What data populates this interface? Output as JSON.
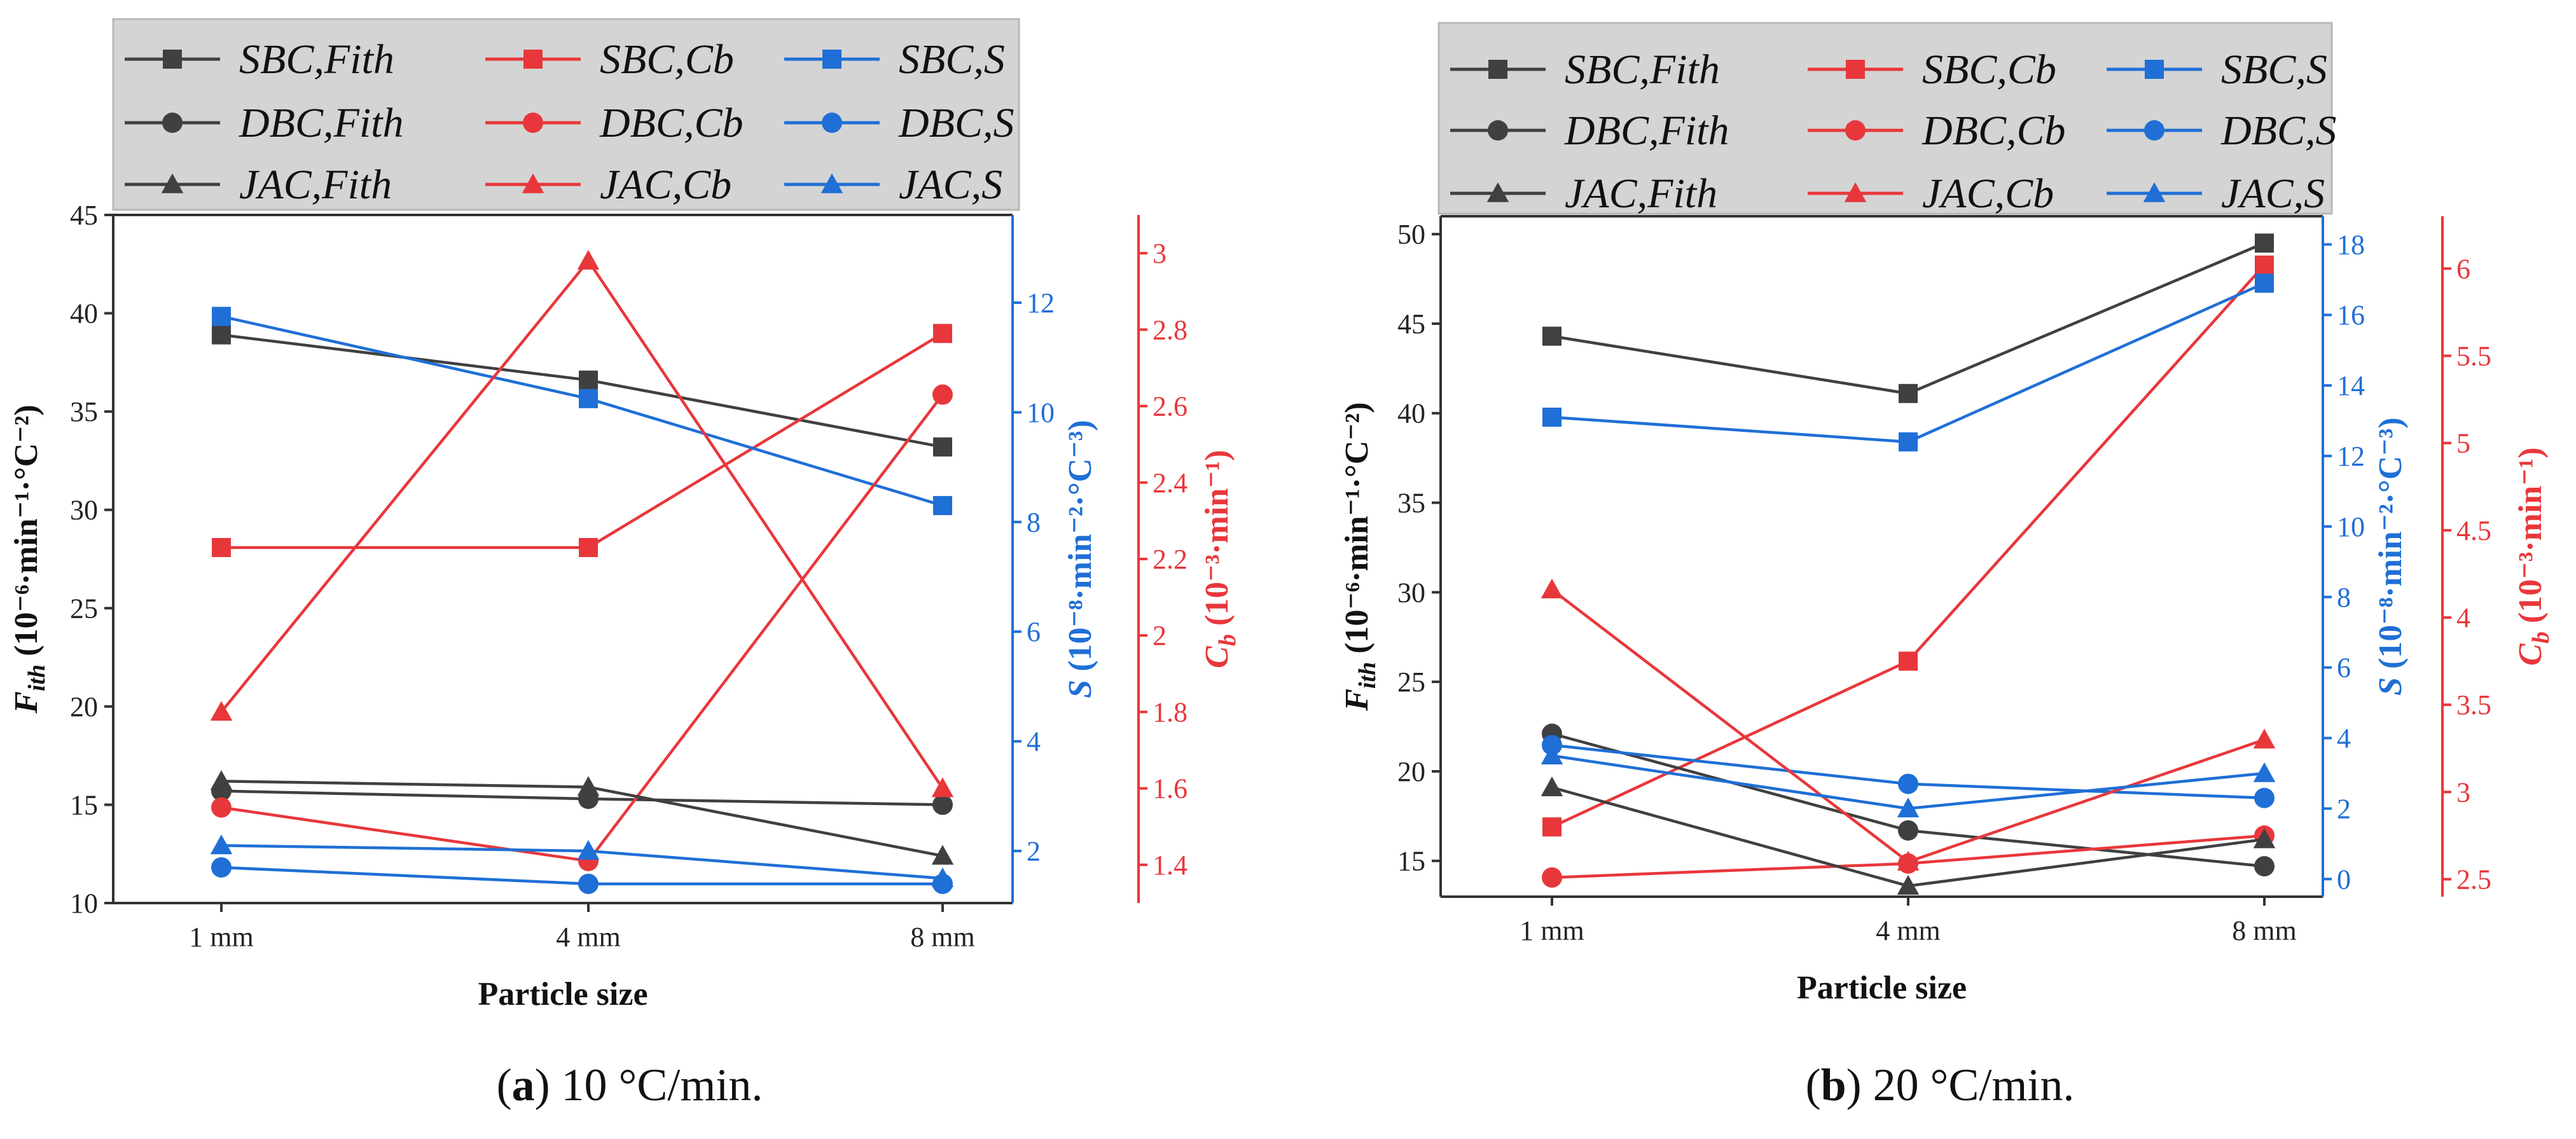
{
  "colors": {
    "black": "#404040",
    "red": "#e8373b",
    "blue": "#1f6fd6",
    "axis_black": "#333333"
  },
  "chart_data": [
    {
      "type": "line",
      "caption_label": "(a)",
      "caption_text": " 10 °C/min.",
      "categories": [
        "1 mm",
        "4 mm",
        "8 mm"
      ],
      "xlabel": "Particle size",
      "axes": {
        "left": {
          "label_main": "F",
          "label_sub": "ith",
          "label_units": " (10⁻⁶·min⁻¹·°C⁻²)",
          "ylim": [
            10,
            45
          ],
          "ticks": [
            10,
            15,
            20,
            25,
            30,
            35,
            40,
            45
          ]
        },
        "blue": {
          "label_main": "S",
          "label_units": " (10⁻⁸·min⁻²·°C⁻³)",
          "ylim": [
            1.05,
            13.6
          ],
          "ticks": [
            2,
            4,
            6,
            8,
            10,
            12
          ]
        },
        "red": {
          "label_main": "C",
          "label_sub": "b",
          "label_units": " (10⁻³·min⁻¹)",
          "ylim": [
            1.3,
            3.1
          ],
          "ticks": [
            1.4,
            1.6,
            1.8,
            2.0,
            2.2,
            2.4,
            2.6,
            2.8,
            3.0
          ]
        }
      },
      "series": [
        {
          "name": "SBC,Fith",
          "axis": "left",
          "color": "black",
          "marker": "square",
          "values": [
            38.9,
            36.6,
            33.2
          ]
        },
        {
          "name": "SBC,Cb",
          "axis": "red",
          "color": "red",
          "marker": "square",
          "values": [
            2.23,
            2.23,
            2.79
          ]
        },
        {
          "name": "SBC,S",
          "axis": "blue",
          "color": "blue",
          "marker": "square",
          "values": [
            11.75,
            10.25,
            8.3
          ]
        },
        {
          "name": "DBC,Fith",
          "axis": "left",
          "color": "black",
          "marker": "circle",
          "values": [
            15.7,
            15.3,
            15.0
          ]
        },
        {
          "name": "DBC,Cb",
          "axis": "red",
          "color": "red",
          "marker": "circle",
          "values": [
            1.55,
            1.41,
            2.63
          ]
        },
        {
          "name": "DBC,S",
          "axis": "blue",
          "color": "blue",
          "marker": "circle",
          "values": [
            1.7,
            1.4,
            1.4
          ]
        },
        {
          "name": "JAC,Fith",
          "axis": "left",
          "color": "black",
          "marker": "triangle",
          "values": [
            16.2,
            15.9,
            12.4
          ]
        },
        {
          "name": "JAC,Cb",
          "axis": "red",
          "color": "red",
          "marker": "triangle",
          "values": [
            1.8,
            2.98,
            1.6
          ]
        },
        {
          "name": "JAC,S",
          "axis": "blue",
          "color": "blue",
          "marker": "triangle",
          "values": [
            2.1,
            2.0,
            1.5
          ]
        }
      ]
    },
    {
      "type": "line",
      "caption_label": "(b)",
      "caption_text": " 20 °C/min.",
      "categories": [
        "1 mm",
        "4 mm",
        "8 mm"
      ],
      "xlabel": "Particle size",
      "axes": {
        "left": {
          "label_main": "F",
          "label_sub": "ith",
          "label_units": " (10⁻⁶·min⁻¹·°C⁻²)",
          "ylim": [
            13,
            51
          ],
          "ticks": [
            15,
            20,
            25,
            30,
            35,
            40,
            45,
            50
          ]
        },
        "blue": {
          "label_main": "S",
          "label_units": " (10⁻⁸·min⁻²·°C⁻³)",
          "ylim": [
            -0.5,
            18.8
          ],
          "ticks": [
            0,
            2,
            4,
            6,
            8,
            10,
            12,
            14,
            16,
            18
          ]
        },
        "red": {
          "label_main": "C",
          "label_sub": "b",
          "label_units": " (10⁻³·min⁻¹)",
          "ylim": [
            2.4,
            6.3
          ],
          "ticks": [
            2.5,
            3.0,
            3.5,
            4.0,
            4.5,
            5.0,
            5.5,
            6.0
          ]
        }
      },
      "series": [
        {
          "name": "SBC,Fith",
          "axis": "left",
          "color": "black",
          "marker": "square",
          "values": [
            44.3,
            41.1,
            49.5
          ]
        },
        {
          "name": "SBC,Cb",
          "axis": "red",
          "color": "red",
          "marker": "square",
          "values": [
            2.8,
            3.75,
            6.02
          ]
        },
        {
          "name": "SBC,S",
          "axis": "blue",
          "color": "blue",
          "marker": "square",
          "values": [
            13.1,
            12.4,
            16.9
          ]
        },
        {
          "name": "DBC,Fith",
          "axis": "left",
          "color": "black",
          "marker": "circle",
          "values": [
            22.1,
            16.7,
            14.7
          ]
        },
        {
          "name": "DBC,Cb",
          "axis": "red",
          "color": "red",
          "marker": "circle",
          "values": [
            2.51,
            2.59,
            2.75
          ]
        },
        {
          "name": "DBC,S",
          "axis": "blue",
          "color": "blue",
          "marker": "circle",
          "values": [
            3.8,
            2.7,
            2.3
          ]
        },
        {
          "name": "JAC,Fith",
          "axis": "left",
          "color": "black",
          "marker": "triangle",
          "values": [
            19.1,
            13.6,
            16.2
          ]
        },
        {
          "name": "JAC,Cb",
          "axis": "red",
          "color": "red",
          "marker": "triangle",
          "values": [
            4.16,
            2.6,
            3.3
          ]
        },
        {
          "name": "JAC,S",
          "axis": "blue",
          "color": "blue",
          "marker": "triangle",
          "values": [
            3.5,
            2.0,
            3.0
          ]
        }
      ]
    }
  ]
}
